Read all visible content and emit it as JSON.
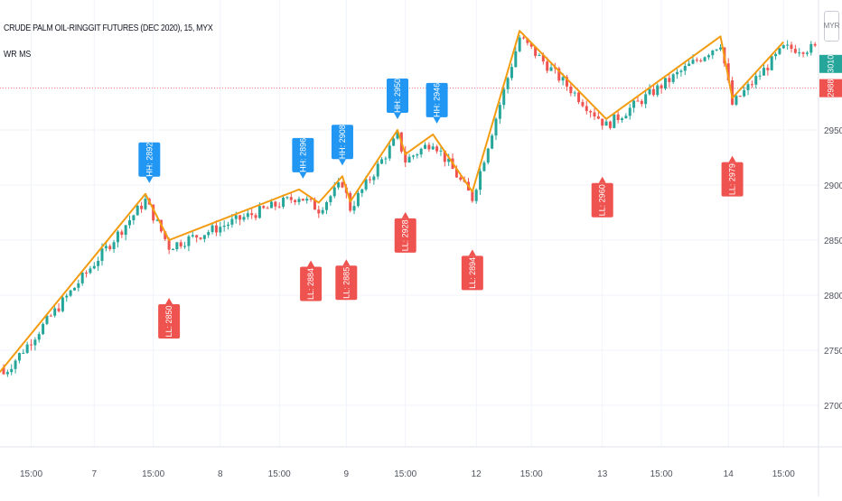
{
  "title": "CRUDE PALM OIL-RINGGIT FUTURES (DEC 2020), 15, MYX",
  "indicator": "WR MS",
  "currency": "MYR",
  "colors": {
    "up": "#26a69a",
    "down": "#ef5350",
    "zigzag": "#f39c12",
    "hh_label": "#2196f3",
    "ll_label": "#ef5350",
    "grid": "#f0f3fa",
    "axis_text": "#50535e",
    "ref_line": "#ef5350"
  },
  "chart_data": {
    "type": "candlestick",
    "title": "CRUDE PALM OIL-RINGGIT FUTURES (DEC 2020), 15, MYX",
    "y_ticks": [
      2700,
      2750,
      2800,
      2850,
      2900,
      2950
    ],
    "ylim": [
      2665,
      3065
    ],
    "x_ticks": [
      {
        "label": "15:00",
        "bar": 7
      },
      {
        "label": "7",
        "bar": 23
      },
      {
        "label": "15:00",
        "bar": 38
      },
      {
        "label": "8",
        "bar": 55
      },
      {
        "label": "15:00",
        "bar": 70
      },
      {
        "label": "9",
        "bar": 87
      },
      {
        "label": "15:00",
        "bar": 102
      },
      {
        "label": "12",
        "bar": 120
      },
      {
        "label": "15:00",
        "bar": 134
      },
      {
        "label": "13",
        "bar": 152
      },
      {
        "label": "15:00",
        "bar": 167
      },
      {
        "label": "14",
        "bar": 184
      },
      {
        "label": "15:00",
        "bar": 198
      }
    ],
    "price_labels": [
      {
        "value": 3010,
        "text": "3010",
        "color": "#26a69a"
      },
      {
        "value": 2988,
        "text": "2988",
        "color": "#ef5350"
      }
    ],
    "reference_line": 2988,
    "zigzag": [
      {
        "bar": -1,
        "price": 2730
      },
      {
        "bar": 36,
        "price": 2892
      },
      {
        "bar": 42,
        "price": 2850
      },
      {
        "bar": 75,
        "price": 2896
      },
      {
        "bar": 80,
        "price": 2884
      },
      {
        "bar": 86,
        "price": 2908
      },
      {
        "bar": 88,
        "price": 2885
      },
      {
        "bar": 100,
        "price": 2950
      },
      {
        "bar": 102,
        "price": 2928
      },
      {
        "bar": 109,
        "price": 2946
      },
      {
        "bar": 119,
        "price": 2894
      },
      {
        "bar": 131,
        "price": 3040
      },
      {
        "bar": 153,
        "price": 2960
      },
      {
        "bar": 182,
        "price": 3035
      },
      {
        "bar": 185,
        "price": 2979
      },
      {
        "bar": 198,
        "price": 3030
      }
    ],
    "hh_labels": [
      {
        "bar": 37,
        "price": 2892,
        "text": "HH: 2892"
      },
      {
        "bar": 76,
        "price": 2896,
        "text": "HH: 2896"
      },
      {
        "bar": 86,
        "price": 2908,
        "text": "HH: 2908"
      },
      {
        "bar": 100,
        "price": 2950,
        "text": "HH: 2950"
      },
      {
        "bar": 110,
        "price": 2946,
        "text": "HH: 2946"
      }
    ],
    "ll_labels": [
      {
        "bar": 42,
        "price": 2850,
        "text": "LL: 2850"
      },
      {
        "bar": 78,
        "price": 2884,
        "text": "LL: 2884"
      },
      {
        "bar": 87,
        "price": 2885,
        "text": "LL: 2885"
      },
      {
        "bar": 102,
        "price": 2928,
        "text": "LL: 2928"
      },
      {
        "bar": 119,
        "price": 2894,
        "text": "LL: 2894"
      },
      {
        "bar": 152,
        "price": 2960,
        "text": "LL: 2960"
      },
      {
        "bar": 185,
        "price": 2979,
        "text": "LL: 2979"
      }
    ]
  }
}
